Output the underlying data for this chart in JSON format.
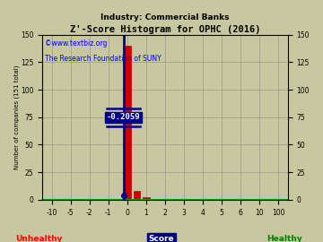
{
  "title": "Z'-Score Histogram for OPHC (2016)",
  "subtitle": "Industry: Commercial Banks",
  "watermark_line1": "©www.textbiz.org",
  "watermark_line2": "The Research Foundation of SUNY",
  "xlabel_center": "Score",
  "xlabel_left": "Unhealthy",
  "xlabel_right": "Healthy",
  "ylabel": "Number of companies (151 total)",
  "annotation": "-0.2059",
  "bg_color": "#c8c8a0",
  "bar_color_main": "#cc0000",
  "line_color": "#00008b",
  "annotation_bg": "#00008b",
  "annotation_text_color": "#ffffff",
  "x_tick_labels": [
    "-10",
    "-5",
    "-2",
    "-1",
    "0",
    "1",
    "2",
    "3",
    "4",
    "5",
    "6",
    "10",
    "100"
  ],
  "x_tick_positions": [
    0,
    1,
    2,
    3,
    4,
    5,
    6,
    7,
    8,
    9,
    10,
    11,
    12
  ],
  "x_real_values": [
    -10,
    -5,
    -2,
    -1,
    0,
    1,
    2,
    3,
    4,
    5,
    6,
    10,
    100
  ],
  "ylim": [
    0,
    150
  ],
  "yticks": [
    0,
    25,
    50,
    75,
    100,
    125,
    150
  ],
  "ophc_real_score": -0.2059,
  "green_line_color": "#00aa00",
  "bar_at_0": 140,
  "bar_at_0p5": 8,
  "bar_at_1": 2
}
